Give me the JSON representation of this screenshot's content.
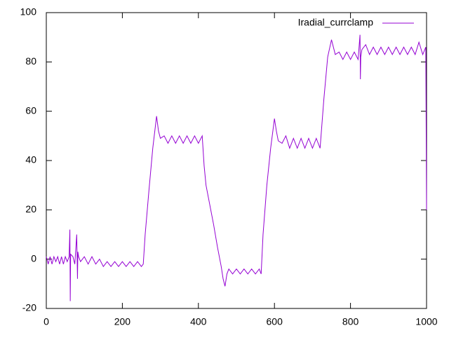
{
  "chart_data": {
    "type": "line",
    "x": [
      0,
      5,
      10,
      15,
      20,
      25,
      30,
      35,
      40,
      45,
      50,
      55,
      60,
      62,
      63,
      64,
      70,
      75,
      80,
      82,
      83,
      85,
      90,
      100,
      110,
      120,
      130,
      140,
      150,
      160,
      170,
      180,
      190,
      200,
      210,
      220,
      230,
      240,
      250,
      255,
      260,
      270,
      280,
      290,
      295,
      300,
      310,
      320,
      330,
      340,
      350,
      360,
      370,
      380,
      390,
      400,
      410,
      415,
      420,
      430,
      440,
      450,
      460,
      465,
      470,
      475,
      480,
      490,
      500,
      510,
      520,
      530,
      540,
      550,
      560,
      565,
      570,
      580,
      590,
      600,
      605,
      610,
      620,
      630,
      640,
      650,
      660,
      670,
      680,
      690,
      700,
      710,
      720,
      725,
      730,
      740,
      750,
      755,
      760,
      770,
      780,
      790,
      800,
      810,
      820,
      825,
      826,
      827,
      830,
      840,
      850,
      860,
      870,
      880,
      890,
      900,
      910,
      920,
      930,
      940,
      950,
      960,
      970,
      980,
      990,
      998,
      1000
    ],
    "series": [
      {
        "name": "Iradial_currclamp",
        "color": "#9400d3",
        "values": [
          1,
          -2,
          1,
          -2,
          1,
          -1,
          1,
          -2,
          1,
          -2,
          1,
          -1,
          1,
          12,
          -17,
          2,
          1,
          -2,
          10,
          -8,
          3,
          1,
          -1,
          1,
          -2,
          1,
          -2,
          0,
          -3,
          -1,
          -3,
          -1,
          -3,
          -1,
          -3,
          -1,
          -3,
          -1,
          -3,
          -2,
          10,
          28,
          45,
          58,
          52,
          49,
          50,
          47,
          50,
          47,
          50,
          47,
          50,
          47,
          50,
          47,
          50,
          38,
          30,
          22,
          14,
          5,
          -3,
          -8,
          -11,
          -6,
          -4,
          -6,
          -4,
          -6,
          -4,
          -6,
          -4,
          -6,
          -4,
          -6,
          10,
          30,
          45,
          57,
          52,
          48,
          47,
          50,
          45,
          49,
          45,
          49,
          45,
          49,
          45,
          49,
          45,
          55,
          65,
          82,
          89,
          86,
          83,
          84,
          81,
          84,
          81,
          84,
          81,
          91,
          73,
          82,
          85,
          87,
          83,
          86,
          83,
          86,
          83,
          86,
          83,
          86,
          83,
          86,
          83,
          86,
          83,
          88,
          83,
          86,
          20
        ]
      }
    ],
    "xlim": [
      0,
      1000
    ],
    "xticks": [
      0,
      200,
      400,
      600,
      800,
      1000
    ],
    "ylim": [
      -20,
      100
    ],
    "yticks": [
      -20,
      0,
      20,
      40,
      60,
      80,
      100
    ],
    "legend": "top-right"
  }
}
